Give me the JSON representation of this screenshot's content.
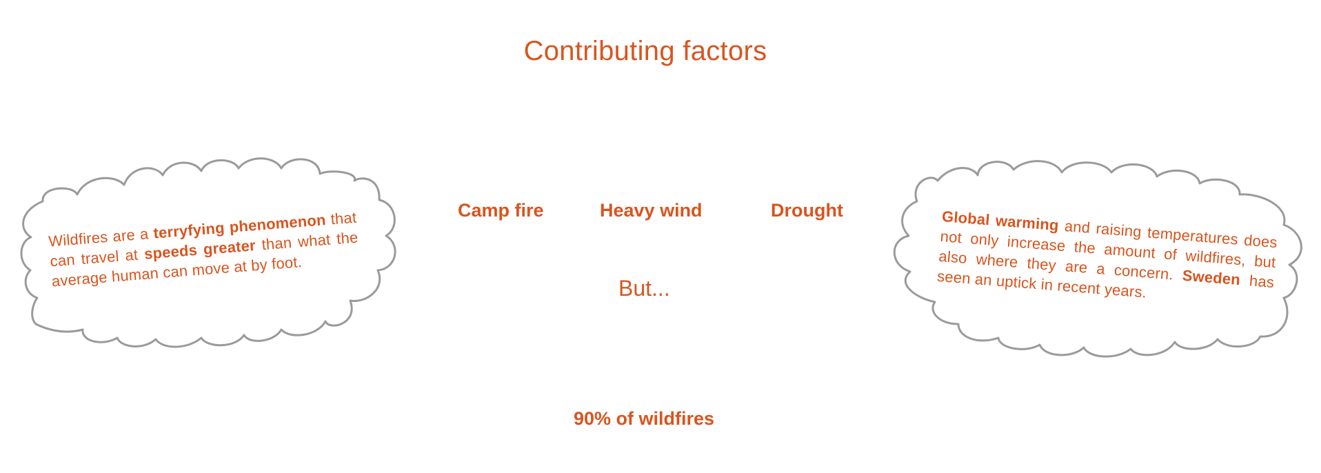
{
  "title": "Contributing factors",
  "factors": [
    {
      "label": "Camp fire"
    },
    {
      "label": "Heavy wind"
    },
    {
      "label": "Drought"
    }
  ],
  "but_text": "But...",
  "stat_text": "90% of wildfires",
  "left_cloud": {
    "t1": "Wildfires are a ",
    "b1": "terryfying phenomenon",
    "t2": " that can travel at ",
    "b2": "speeds greater",
    "t3": " than what the average human can move at by foot."
  },
  "right_cloud": {
    "b1": "Global warming",
    "t1": " and raising temperatures does not only increase the amount of wildfires, but also where they are a concern. ",
    "b2": "Sweden",
    "t2": " has seen an uptick in recent years."
  },
  "colors": {
    "accent": "#d9541e",
    "cloud_outline": "#9a9a9a"
  }
}
